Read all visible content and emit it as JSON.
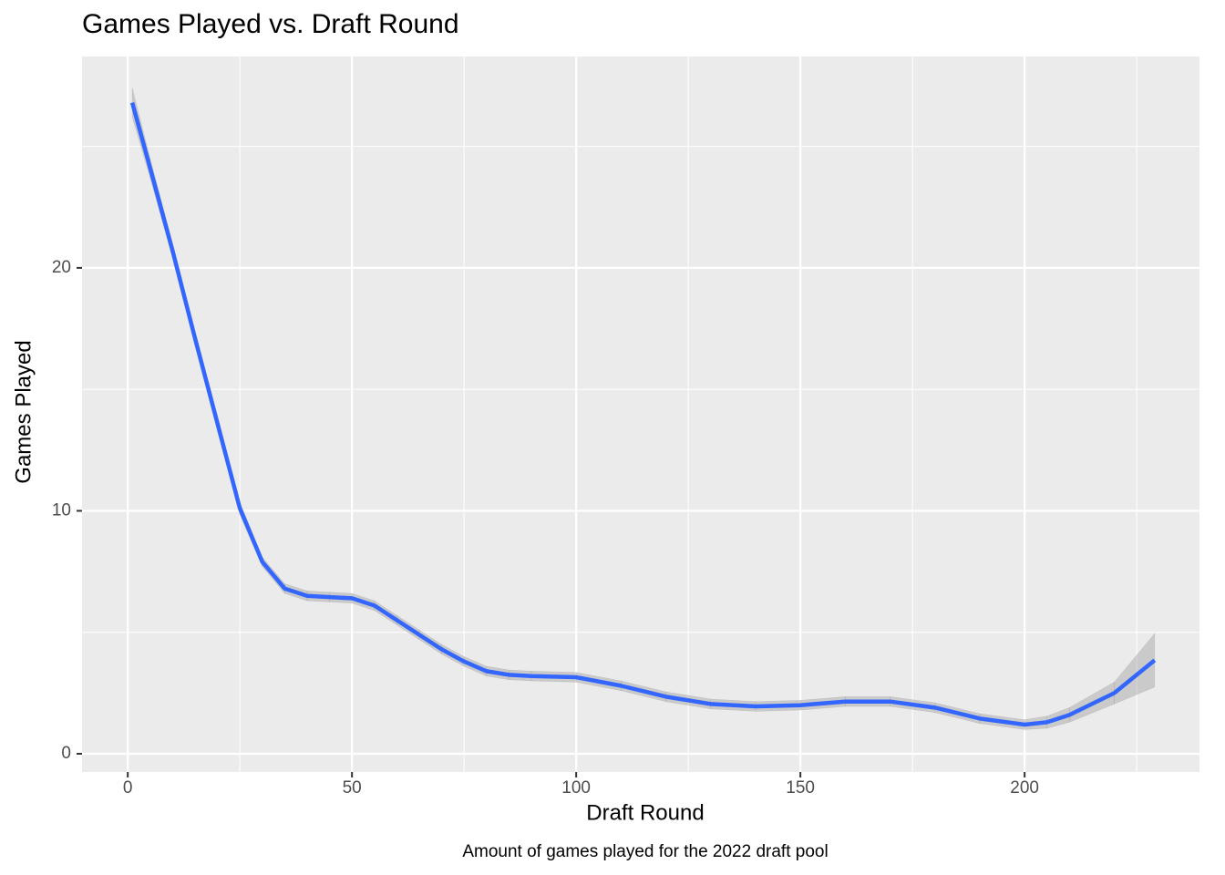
{
  "chart_data": {
    "type": "line",
    "title": "Games Played vs. Draft Round",
    "x_label": "Draft Round",
    "y_label": "Games Played",
    "caption": "Amount of games played for the 2022 draft pool",
    "x": [
      1,
      5,
      10,
      15,
      20,
      25,
      30,
      35,
      40,
      45,
      50,
      55,
      60,
      65,
      70,
      75,
      80,
      85,
      90,
      100,
      110,
      120,
      130,
      140,
      150,
      160,
      170,
      180,
      190,
      200,
      205,
      210,
      220,
      229
    ],
    "series": [
      {
        "color": "#3366ff",
        "band_color": "#999999",
        "values": [
          26.8,
          24.1,
          20.7,
          17.1,
          13.6,
          10.1,
          7.9,
          6.8,
          6.5,
          6.45,
          6.4,
          6.1,
          5.5,
          4.9,
          4.3,
          3.8,
          3.4,
          3.25,
          3.2,
          3.15,
          2.8,
          2.35,
          2.05,
          1.95,
          2.0,
          2.15,
          2.15,
          1.9,
          1.45,
          1.2,
          1.3,
          1.6,
          2.5,
          3.85
        ],
        "lower": [
          26.2,
          23.7,
          20.4,
          16.8,
          13.3,
          9.85,
          7.7,
          6.6,
          6.3,
          6.25,
          6.2,
          5.9,
          5.3,
          4.7,
          4.1,
          3.6,
          3.2,
          3.05,
          3.0,
          2.95,
          2.6,
          2.15,
          1.85,
          1.75,
          1.8,
          1.95,
          1.95,
          1.7,
          1.25,
          1.0,
          1.05,
          1.3,
          2.05,
          2.75
        ],
        "upper": [
          27.4,
          24.5,
          21.0,
          17.4,
          13.9,
          10.35,
          8.1,
          7.0,
          6.7,
          6.65,
          6.6,
          6.3,
          5.7,
          5.1,
          4.5,
          4.0,
          3.6,
          3.45,
          3.4,
          3.35,
          3.0,
          2.55,
          2.25,
          2.15,
          2.2,
          2.35,
          2.35,
          2.1,
          1.65,
          1.4,
          1.55,
          1.9,
          2.95,
          4.95
        ]
      }
    ],
    "xlim": [
      -10.2,
      239
    ],
    "ylim": [
      -0.75,
      28.7
    ],
    "xticks": [
      0,
      50,
      100,
      150,
      200
    ],
    "yticks": [
      0,
      10,
      20
    ],
    "xminor": [
      25,
      75,
      125,
      175,
      225
    ],
    "yminor": [
      5,
      15,
      25
    ],
    "grid": true
  }
}
